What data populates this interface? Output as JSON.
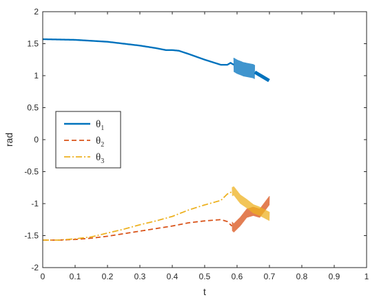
{
  "chart_data": {
    "type": "line",
    "title": "",
    "xlabel": "t",
    "ylabel": "rad",
    "xlim": [
      0,
      1
    ],
    "ylim": [
      -2,
      2
    ],
    "x_ticks": [
      "0",
      "0.1",
      "0.2",
      "0.3",
      "0.4",
      "0.5",
      "0.6",
      "0.7",
      "0.8",
      "0.9",
      "1"
    ],
    "y_ticks": [
      "-2",
      "-1.5",
      "-1",
      "-0.5",
      "0",
      "0.5",
      "1",
      "1.5",
      "2"
    ],
    "grid": false,
    "legend_position": "middle-left",
    "series": [
      {
        "name": "θ",
        "subscript": "1",
        "color": "#0072BD",
        "style": "solid",
        "x": [
          0,
          0.1,
          0.2,
          0.3,
          0.35,
          0.38,
          0.4,
          0.42,
          0.45,
          0.5,
          0.55,
          0.57,
          0.58,
          0.6,
          0.62,
          0.65,
          0.68,
          0.7
        ],
        "y": [
          1.57,
          1.56,
          1.53,
          1.47,
          1.43,
          1.4,
          1.4,
          1.39,
          1.34,
          1.25,
          1.17,
          1.17,
          1.2,
          1.14,
          1.1,
          1.07,
          0.98,
          0.92
        ],
        "oscillation_region": {
          "x_start": 0.59,
          "x_end": 0.655,
          "amplitude": 0.11
        }
      },
      {
        "name": "θ",
        "subscript": "2",
        "color": "#D95319",
        "style": "dashed",
        "x": [
          0,
          0.05,
          0.1,
          0.15,
          0.2,
          0.25,
          0.3,
          0.35,
          0.4,
          0.45,
          0.5,
          0.55,
          0.57,
          0.59,
          0.61,
          0.63,
          0.65,
          0.67,
          0.7
        ],
        "y": [
          -1.57,
          -1.57,
          -1.56,
          -1.54,
          -1.51,
          -1.47,
          -1.43,
          -1.39,
          -1.35,
          -1.3,
          -1.27,
          -1.25,
          -1.28,
          -1.38,
          -1.28,
          -1.15,
          -1.12,
          -1.15,
          -0.95
        ],
        "oscillation_region": {
          "x_start": 0.585,
          "x_end": 0.7,
          "amplitude": 0.07
        }
      },
      {
        "name": "θ",
        "subscript": "3",
        "color": "#EDB120",
        "style": "dashdot",
        "x": [
          0,
          0.05,
          0.1,
          0.15,
          0.2,
          0.25,
          0.3,
          0.35,
          0.4,
          0.45,
          0.5,
          0.55,
          0.57,
          0.59,
          0.61,
          0.63,
          0.65,
          0.67,
          0.7
        ],
        "y": [
          -1.57,
          -1.57,
          -1.55,
          -1.52,
          -1.46,
          -1.4,
          -1.33,
          -1.27,
          -1.2,
          -1.1,
          -1.02,
          -0.95,
          -0.85,
          -0.8,
          -0.93,
          -1.0,
          -1.08,
          -1.12,
          -1.2
        ],
        "oscillation_region": {
          "x_start": 0.585,
          "x_end": 0.7,
          "amplitude": 0.07
        }
      }
    ]
  }
}
